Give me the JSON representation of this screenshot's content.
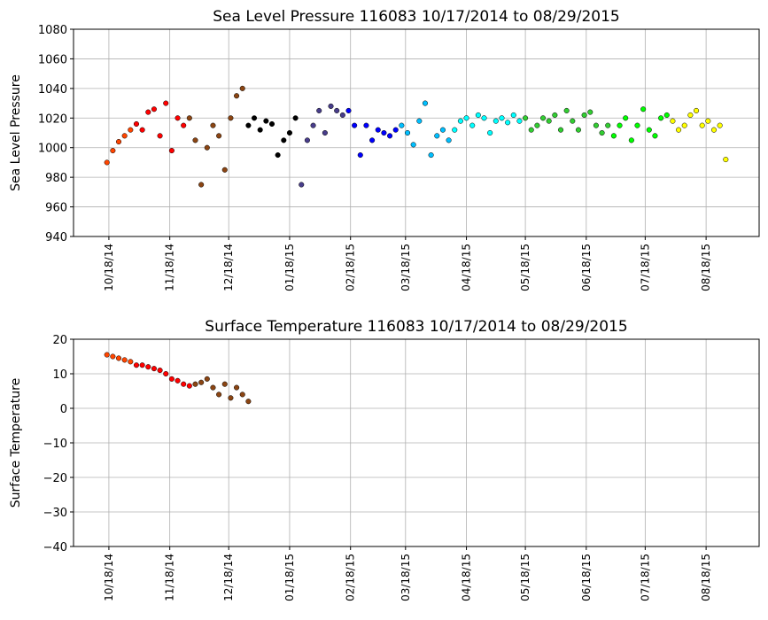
{
  "chart_data": [
    {
      "type": "scatter",
      "title": "Sea Level Pressure 116083  10/17/2014 to 08/29/2015",
      "y_label": "Sea Level Pressure",
      "xlim": [
        "2014-09-30",
        "2015-09-14"
      ],
      "ylim": [
        940,
        1080
      ],
      "yticks": [
        940,
        960,
        980,
        1000,
        1020,
        1040,
        1060,
        1080
      ],
      "grid": true,
      "xticks": [
        {
          "value": "2014-10-18",
          "label": "10/18/14"
        },
        {
          "value": "2014-11-18",
          "label": "11/18/14"
        },
        {
          "value": "2014-12-18",
          "label": "12/18/14"
        },
        {
          "value": "2015-01-18",
          "label": "01/18/15"
        },
        {
          "value": "2015-02-18",
          "label": "02/18/15"
        },
        {
          "value": "2015-03-18",
          "label": "03/18/15"
        },
        {
          "value": "2015-04-18",
          "label": "04/18/15"
        },
        {
          "value": "2015-05-18",
          "label": "05/18/15"
        },
        {
          "value": "2015-06-18",
          "label": "06/18/15"
        },
        {
          "value": "2015-07-18",
          "label": "07/18/15"
        },
        {
          "value": "2015-08-18",
          "label": "08/18/15"
        }
      ],
      "series": [
        {
          "color": "#ff4500",
          "x": [
            "2014-10-17",
            "2014-10-20",
            "2014-10-23",
            "2014-10-26",
            "2014-10-29"
          ],
          "values": [
            990,
            998,
            1004,
            1008,
            1012
          ]
        },
        {
          "color": "#ff0000",
          "x": [
            "2014-11-01",
            "2014-11-04",
            "2014-11-07",
            "2014-11-10",
            "2014-11-13",
            "2014-11-16",
            "2014-11-19",
            "2014-11-22",
            "2014-11-25"
          ],
          "values": [
            1016,
            1012,
            1024,
            1026,
            1008,
            1030,
            998,
            1020,
            1015
          ]
        },
        {
          "color": "#8b4513",
          "x": [
            "2014-11-28",
            "2014-12-01",
            "2014-12-04",
            "2014-12-07",
            "2014-12-10",
            "2014-12-13",
            "2014-12-16",
            "2014-12-19",
            "2014-12-22",
            "2014-12-25"
          ],
          "values": [
            1020,
            1005,
            975,
            1000,
            1015,
            1008,
            985,
            1020,
            1035,
            1040
          ]
        },
        {
          "color": "#000000",
          "x": [
            "2014-12-28",
            "2014-12-31",
            "2015-01-03",
            "2015-01-06",
            "2015-01-09",
            "2015-01-12",
            "2015-01-15",
            "2015-01-18",
            "2015-01-21"
          ],
          "values": [
            1015,
            1020,
            1012,
            1018,
            1016,
            995,
            1005,
            1010,
            1020
          ]
        },
        {
          "color": "#483d8b",
          "x": [
            "2015-01-24",
            "2015-01-27",
            "2015-01-30",
            "2015-02-02",
            "2015-02-05",
            "2015-02-08",
            "2015-02-11",
            "2015-02-14"
          ],
          "values": [
            975,
            1005,
            1015,
            1025,
            1010,
            1028,
            1025,
            1022
          ]
        },
        {
          "color": "#0000ff",
          "x": [
            "2015-02-17",
            "2015-02-20",
            "2015-02-23",
            "2015-02-26",
            "2015-03-01",
            "2015-03-04",
            "2015-03-07",
            "2015-03-10",
            "2015-03-13"
          ],
          "values": [
            1025,
            1015,
            995,
            1015,
            1005,
            1012,
            1010,
            1008,
            1012
          ]
        },
        {
          "color": "#00bfff",
          "x": [
            "2015-03-16",
            "2015-03-19",
            "2015-03-22",
            "2015-03-25",
            "2015-03-28",
            "2015-03-31",
            "2015-04-03",
            "2015-04-06",
            "2015-04-09"
          ],
          "values": [
            1015,
            1010,
            1002,
            1018,
            1030,
            995,
            1008,
            1012,
            1005
          ]
        },
        {
          "color": "#00ffff",
          "x": [
            "2015-04-12",
            "2015-04-15",
            "2015-04-18",
            "2015-04-21",
            "2015-04-24",
            "2015-04-27",
            "2015-04-30",
            "2015-05-03",
            "2015-05-06",
            "2015-05-09",
            "2015-05-12",
            "2015-05-15"
          ],
          "values": [
            1012,
            1018,
            1020,
            1015,
            1022,
            1020,
            1010,
            1018,
            1020,
            1017,
            1022,
            1018
          ]
        },
        {
          "color": "#32cd32",
          "x": [
            "2015-05-18",
            "2015-05-21",
            "2015-05-24",
            "2015-05-27",
            "2015-05-30",
            "2015-06-02",
            "2015-06-05",
            "2015-06-08",
            "2015-06-11",
            "2015-06-14",
            "2015-06-17",
            "2015-06-20",
            "2015-06-23",
            "2015-06-26",
            "2015-06-29"
          ],
          "values": [
            1020,
            1012,
            1015,
            1020,
            1018,
            1022,
            1012,
            1025,
            1018,
            1012,
            1022,
            1024,
            1015,
            1010,
            1015
          ]
        },
        {
          "color": "#00ff00",
          "x": [
            "2015-07-02",
            "2015-07-05",
            "2015-07-08",
            "2015-07-11",
            "2015-07-14",
            "2015-07-17",
            "2015-07-20",
            "2015-07-23",
            "2015-07-26",
            "2015-07-29"
          ],
          "values": [
            1008,
            1015,
            1020,
            1005,
            1015,
            1026,
            1012,
            1008,
            1020,
            1022
          ]
        },
        {
          "color": "#ffff00",
          "x": [
            "2015-08-01",
            "2015-08-04",
            "2015-08-07",
            "2015-08-10",
            "2015-08-13",
            "2015-08-16",
            "2015-08-19",
            "2015-08-22",
            "2015-08-25",
            "2015-08-28"
          ],
          "values": [
            1018,
            1012,
            1015,
            1022,
            1025,
            1015,
            1018,
            1012,
            1015,
            992
          ]
        }
      ]
    },
    {
      "type": "scatter",
      "title": "Surface Temperature 116083  10/17/2014 to 08/29/2015",
      "y_label": "Surface Temperature",
      "xlim": [
        "2014-09-30",
        "2015-09-14"
      ],
      "ylim": [
        -40,
        20
      ],
      "grid": true,
      "yticks": [
        {
          "value": -40,
          "label": "−40"
        },
        {
          "value": -30,
          "label": "−30"
        },
        {
          "value": -20,
          "label": "−20"
        },
        {
          "value": -10,
          "label": "−10"
        },
        0,
        10,
        20
      ],
      "xticks": [
        {
          "value": "2014-10-18",
          "label": "10/18/14"
        },
        {
          "value": "2014-11-18",
          "label": "11/18/14"
        },
        {
          "value": "2014-12-18",
          "label": "12/18/14"
        },
        {
          "value": "2015-01-18",
          "label": "01/18/15"
        },
        {
          "value": "2015-02-18",
          "label": "02/18/15"
        },
        {
          "value": "2015-03-18",
          "label": "03/18/15"
        },
        {
          "value": "2015-04-18",
          "label": "04/18/15"
        },
        {
          "value": "2015-05-18",
          "label": "05/18/15"
        },
        {
          "value": "2015-06-18",
          "label": "06/18/15"
        },
        {
          "value": "2015-07-18",
          "label": "07/18/15"
        },
        {
          "value": "2015-08-18",
          "label": "08/18/15"
        }
      ],
      "series": [
        {
          "color": "#ff4500",
          "x": [
            "2014-10-17",
            "2014-10-20",
            "2014-10-23",
            "2014-10-26",
            "2014-10-29"
          ],
          "values": [
            15.5,
            15,
            14.5,
            14,
            13.5
          ]
        },
        {
          "color": "#ff0000",
          "x": [
            "2014-11-01",
            "2014-11-04",
            "2014-11-07",
            "2014-11-10",
            "2014-11-13",
            "2014-11-16",
            "2014-11-19",
            "2014-11-22",
            "2014-11-25",
            "2014-11-28"
          ],
          "values": [
            12.5,
            12.5,
            12,
            11.5,
            11,
            10,
            8.5,
            8,
            7,
            6.5
          ]
        },
        {
          "color": "#8b4513",
          "x": [
            "2014-12-01",
            "2014-12-04",
            "2014-12-07",
            "2014-12-10",
            "2014-12-13",
            "2014-12-16",
            "2014-12-19",
            "2014-12-22",
            "2014-12-25",
            "2014-12-28"
          ],
          "values": [
            7,
            7.5,
            8.5,
            6,
            4,
            7,
            3,
            6,
            4,
            2
          ]
        }
      ]
    }
  ]
}
